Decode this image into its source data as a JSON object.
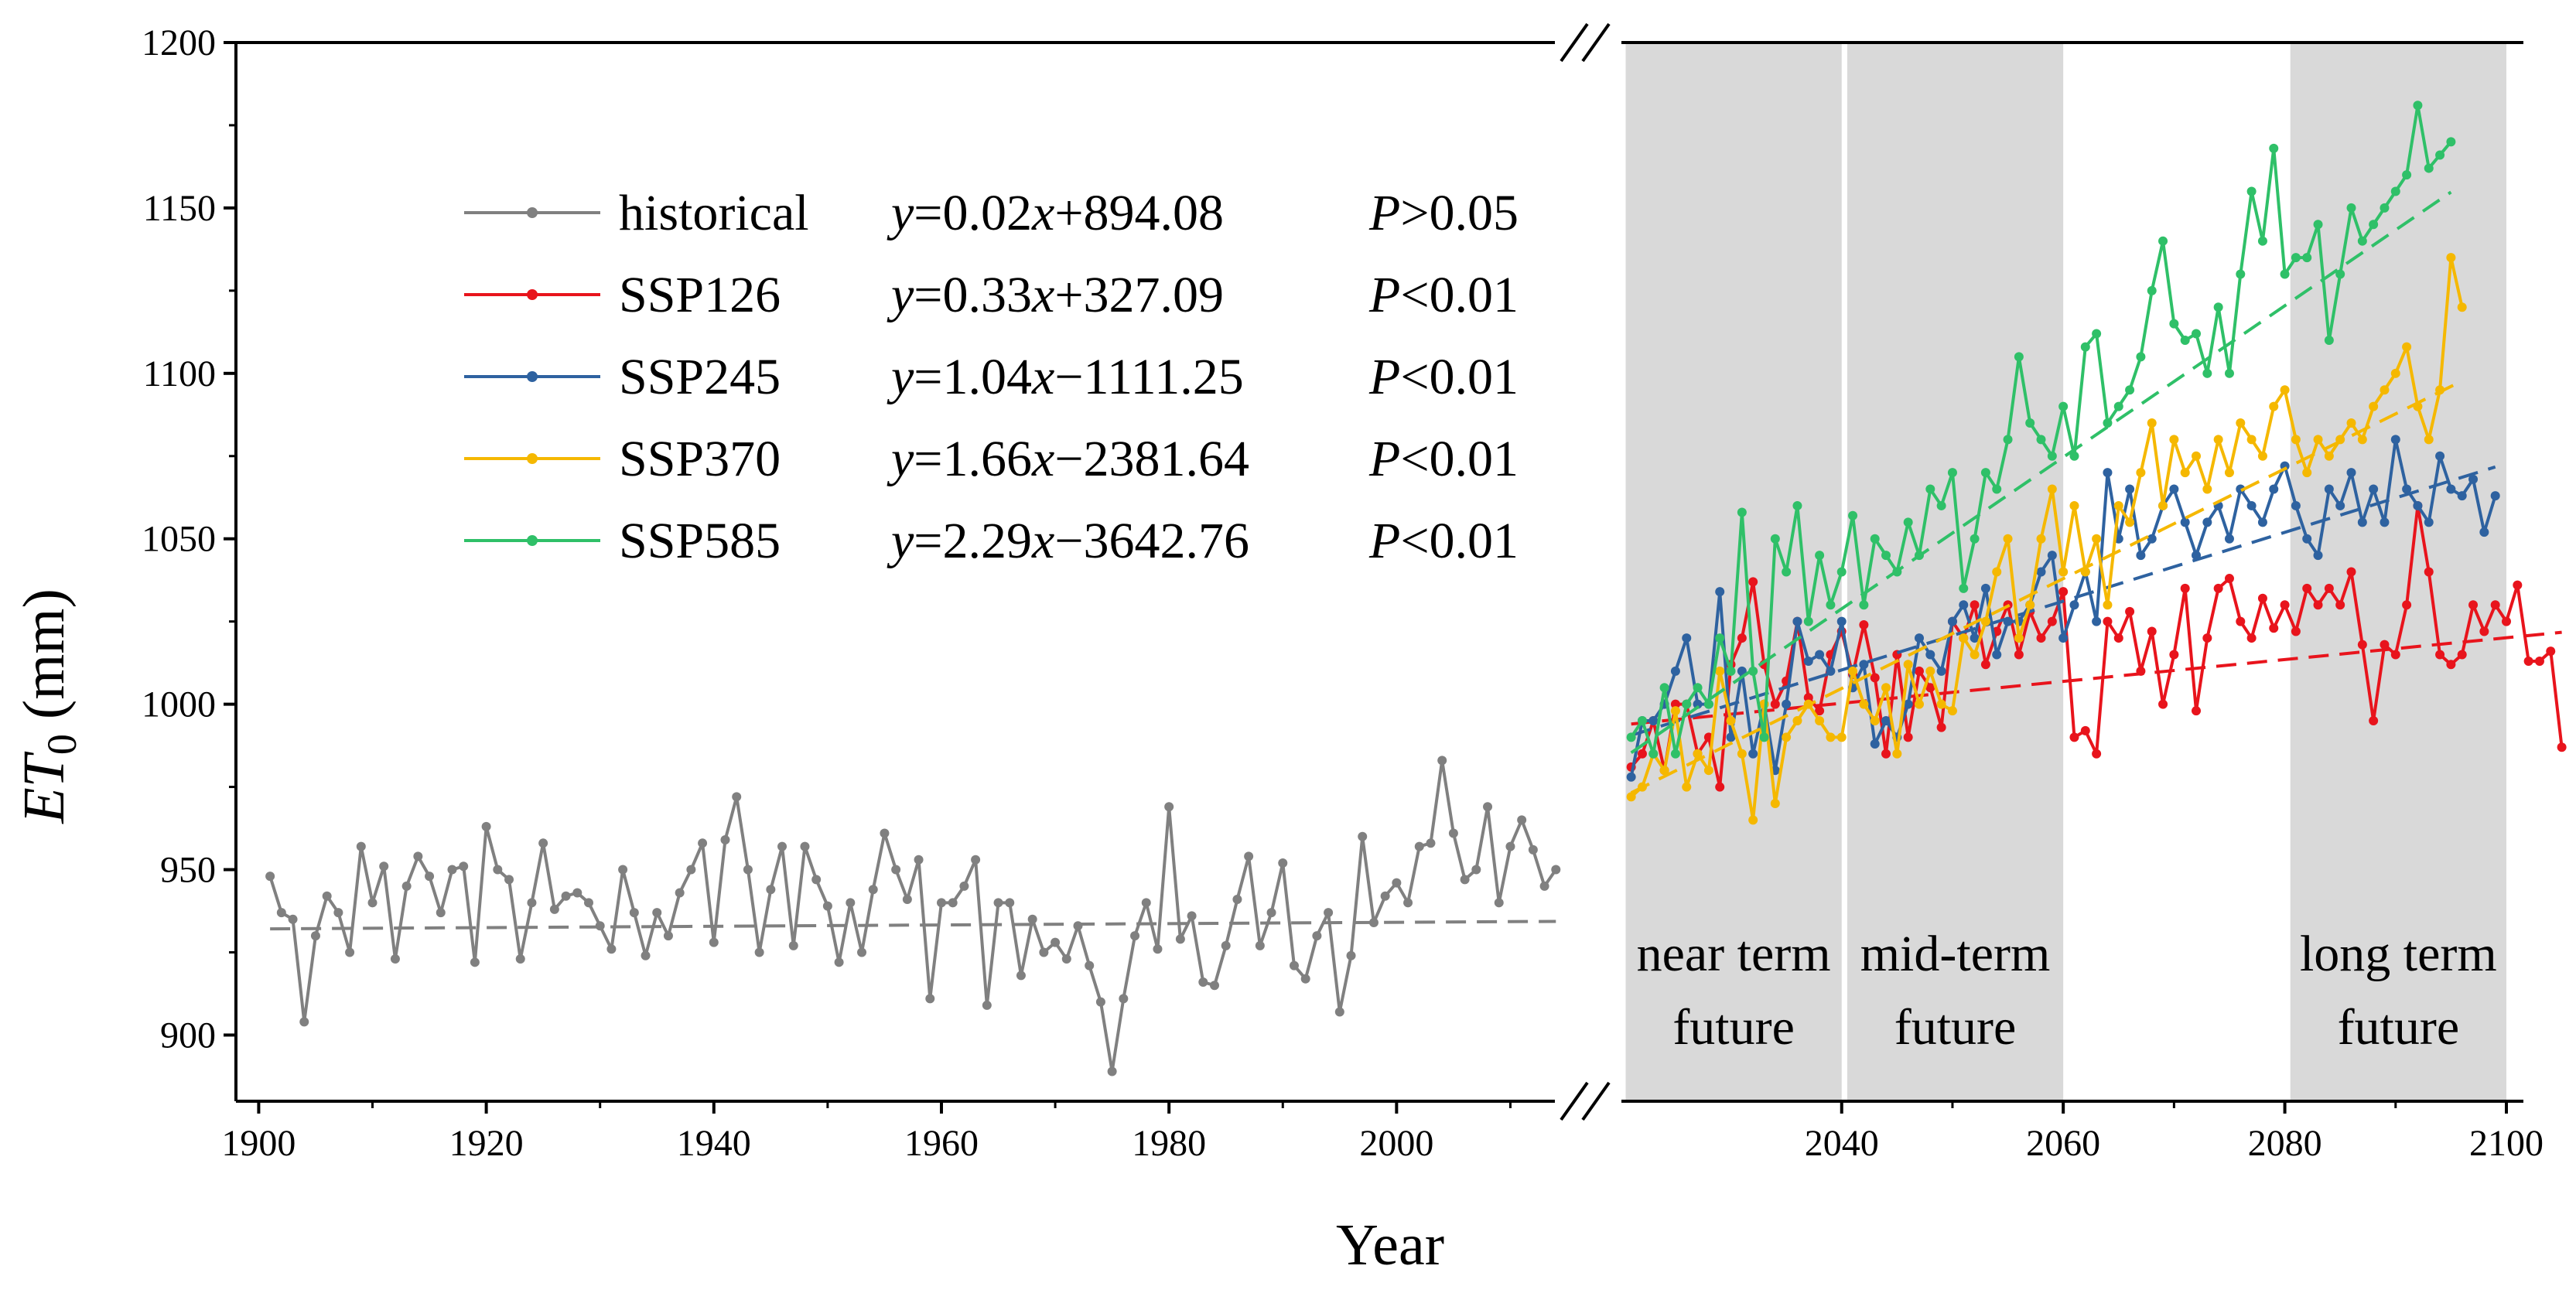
{
  "chart_data": {
    "type": "line",
    "xlabel": "Year",
    "ylabel_main": "ET",
    "ylabel_sub": "0",
    "ylabel_unit": " (mm)",
    "ylim": [
      880,
      1200
    ],
    "y_ticks": [
      900,
      950,
      1000,
      1050,
      1100,
      1150,
      1200
    ],
    "x_ticks_left": [
      1900,
      1920,
      1940,
      1960,
      1980,
      2000
    ],
    "x_ticks_right": [
      2040,
      2060,
      2080,
      2100
    ],
    "xlim_left": [
      1898,
      2015
    ],
    "xlim_right": [
      2019,
      2100
    ],
    "periods": [
      {
        "line1": "near term",
        "line2": "future",
        "start": 2021,
        "end": 2040
      },
      {
        "line1": "mid-term",
        "line2": "future",
        "start": 2041,
        "end": 2060
      },
      {
        "line1": "long term",
        "line2": "future",
        "start": 2081,
        "end": 2100
      }
    ],
    "series": [
      {
        "name": "historical",
        "color": "#808080",
        "start": 1901,
        "eq_pre": "y",
        "eq_mid": "=0.02",
        "eq_var": "x",
        "eq_post": "+894.08",
        "p_sym": "P",
        "p_text": ">0.05",
        "slope": 0.02,
        "intercept": 894.08,
        "values": [
          948,
          937,
          935,
          904,
          930,
          942,
          937,
          925,
          957,
          940,
          951,
          923,
          945,
          954,
          948,
          937,
          950,
          951,
          922,
          963,
          950,
          947,
          923,
          940,
          958,
          938,
          942,
          943,
          940,
          933,
          926,
          950,
          937,
          924,
          937,
          930,
          943,
          950,
          958,
          928,
          959,
          972,
          950,
          925,
          944,
          957,
          927,
          957,
          947,
          939,
          922,
          940,
          925,
          944,
          961,
          950,
          941,
          953,
          911,
          940,
          940,
          945,
          953,
          909,
          940,
          940,
          918,
          935,
          925,
          928,
          923,
          933,
          921,
          910,
          889,
          911,
          930,
          940,
          926,
          969,
          929,
          936,
          916,
          915,
          927,
          941,
          954,
          927,
          937,
          952,
          921,
          917,
          930,
          937,
          907,
          924,
          960,
          934,
          942,
          946,
          940,
          957,
          958,
          983,
          961,
          947,
          950,
          969,
          940,
          957,
          965,
          956,
          945,
          950
        ]
      },
      {
        "name": "SSP126",
        "color": "#e8141c",
        "start": 2021,
        "eq_pre": "y",
        "eq_mid": "=0.33",
        "eq_var": "x",
        "eq_post": "+327.09",
        "p_sym": "P",
        "p_text": "<0.01",
        "slope": 0.33,
        "intercept": 327.09,
        "values": [
          981,
          985,
          995,
          980,
          1000,
          1000,
          985,
          990,
          975,
          1012,
          1020,
          1037,
          1012,
          1000,
          1007,
          1025,
          1002,
          998,
          1015,
          1022,
          1009,
          1024,
          1008,
          985,
          1015,
          990,
          1010,
          1005,
          993,
          1025,
          1020,
          1030,
          1012,
          1022,
          1030,
          1015,
          1028,
          1020,
          1025,
          1034,
          990,
          992,
          985,
          1025,
          1020,
          1028,
          1010,
          1022,
          1000,
          1015,
          1035,
          998,
          1020,
          1035,
          1038,
          1025,
          1020,
          1032,
          1023,
          1030,
          1022,
          1035,
          1030,
          1035,
          1030,
          1040,
          1018,
          995,
          1018,
          1015,
          1030,
          1060,
          1040,
          1015,
          1012,
          1015,
          1030,
          1022,
          1030,
          1025,
          1036,
          1013,
          1013,
          1016,
          987
        ]
      },
      {
        "name": "SSP245",
        "color": "#2e62a0",
        "start": 2021,
        "eq_pre": "y",
        "eq_mid": "=1.04",
        "eq_var": "x",
        "eq_post": "−1111.25",
        "p_sym": "P",
        "p_text": "<0.01",
        "slope": 1.04,
        "intercept": -1111.25,
        "values": [
          978,
          995,
          995,
          1000,
          1010,
          1020,
          1000,
          1000,
          1034,
          990,
          1010,
          985,
          1000,
          980,
          1000,
          1025,
          1013,
          1015,
          1010,
          1025,
          1005,
          1012,
          988,
          995,
          990,
          1000,
          1020,
          1015,
          1010,
          1025,
          1030,
          1020,
          1035,
          1015,
          1025,
          1025,
          1030,
          1040,
          1045,
          1020,
          1030,
          1040,
          1025,
          1070,
          1050,
          1065,
          1045,
          1050,
          1060,
          1065,
          1055,
          1045,
          1055,
          1060,
          1050,
          1065,
          1060,
          1055,
          1065,
          1072,
          1060,
          1050,
          1045,
          1065,
          1060,
          1070,
          1055,
          1065,
          1055,
          1080,
          1065,
          1060,
          1055,
          1075,
          1065,
          1063,
          1068,
          1052,
          1063
        ]
      },
      {
        "name": "SSP370",
        "color": "#f5b800",
        "start": 2021,
        "eq_pre": "y",
        "eq_mid": "=1.66",
        "eq_var": "x",
        "eq_post": "−2381.64",
        "p_sym": "P",
        "p_text": "<0.01",
        "slope": 1.66,
        "intercept": -2381.64,
        "values": [
          972,
          975,
          985,
          980,
          998,
          975,
          985,
          980,
          1010,
          995,
          985,
          965,
          1000,
          970,
          990,
          995,
          1000,
          995,
          990,
          990,
          1010,
          1000,
          995,
          1005,
          985,
          1012,
          1000,
          1010,
          1000,
          998,
          1020,
          1015,
          1025,
          1040,
          1050,
          1020,
          1030,
          1050,
          1065,
          1040,
          1060,
          1040,
          1050,
          1030,
          1060,
          1055,
          1070,
          1085,
          1060,
          1080,
          1070,
          1075,
          1065,
          1080,
          1070,
          1085,
          1080,
          1075,
          1090,
          1095,
          1080,
          1070,
          1080,
          1075,
          1080,
          1085,
          1080,
          1090,
          1095,
          1100,
          1108,
          1090,
          1080,
          1095,
          1135,
          1120
        ]
      },
      {
        "name": "SSP585",
        "color": "#2fc068",
        "start": 2021,
        "eq_pre": "y",
        "eq_mid": "=2.29",
        "eq_var": "x",
        "eq_post": "−3642.76",
        "p_sym": "P",
        "p_text": "<0.01",
        "slope": 2.29,
        "intercept": -3642.76,
        "values": [
          990,
          995,
          985,
          1005,
          985,
          1000,
          1005,
          1000,
          1020,
          1010,
          1058,
          1010,
          990,
          1050,
          1040,
          1060,
          1025,
          1045,
          1030,
          1040,
          1057,
          1030,
          1050,
          1045,
          1040,
          1055,
          1045,
          1065,
          1060,
          1070,
          1035,
          1050,
          1070,
          1065,
          1080,
          1105,
          1085,
          1080,
          1075,
          1090,
          1075,
          1108,
          1112,
          1085,
          1090,
          1095,
          1105,
          1125,
          1140,
          1115,
          1110,
          1112,
          1100,
          1120,
          1100,
          1130,
          1155,
          1140,
          1168,
          1130,
          1135,
          1135,
          1145,
          1110,
          1130,
          1150,
          1140,
          1145,
          1150,
          1155,
          1160,
          1181,
          1162,
          1166,
          1170
        ]
      }
    ]
  }
}
